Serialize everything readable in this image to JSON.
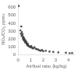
{
  "chart_data": {
    "type": "scatter",
    "xlabel": "Air/fuel ratio (kg/kg)",
    "ylabel": "NOₓ/CO₂ ppmv",
    "x": [
      0.05,
      0.18,
      0.22,
      0.25,
      0.28,
      0.3,
      0.32,
      0.35,
      0.38,
      0.4,
      0.42,
      0.44,
      0.46,
      0.48,
      0.5,
      0.52,
      0.55,
      0.57,
      0.6,
      0.62,
      0.64,
      0.66,
      0.68,
      0.7,
      0.72,
      0.74,
      0.76,
      0.78,
      0.8,
      0.85,
      0.9,
      0.95,
      1.0,
      1.05,
      1.1,
      1.15,
      1.2,
      1.3,
      1.4,
      1.5,
      1.6,
      1.7,
      1.8,
      1.9,
      2.0,
      2.2,
      2.5,
      2.8,
      3.2,
      3.8,
      4.1,
      4.3
    ],
    "values": [
      620,
      310,
      270,
      360,
      240,
      290,
      255,
      265,
      215,
      205,
      230,
      200,
      185,
      210,
      195,
      178,
      162,
      185,
      172,
      158,
      168,
      148,
      152,
      142,
      132,
      128,
      122,
      138,
      118,
      112,
      108,
      102,
      98,
      112,
      93,
      88,
      83,
      97,
      78,
      72,
      67,
      57,
      52,
      62,
      47,
      52,
      42,
      37,
      32,
      27,
      22,
      24
    ],
    "xlim": [
      0,
      4.5
    ],
    "xticks": [
      0,
      1,
      2,
      3,
      4
    ],
    "ylim": [
      0,
      650
    ],
    "yticks": [
      0,
      100,
      200,
      300,
      400,
      500,
      600
    ],
    "grid": false,
    "color": "#444444",
    "marker": "square"
  }
}
